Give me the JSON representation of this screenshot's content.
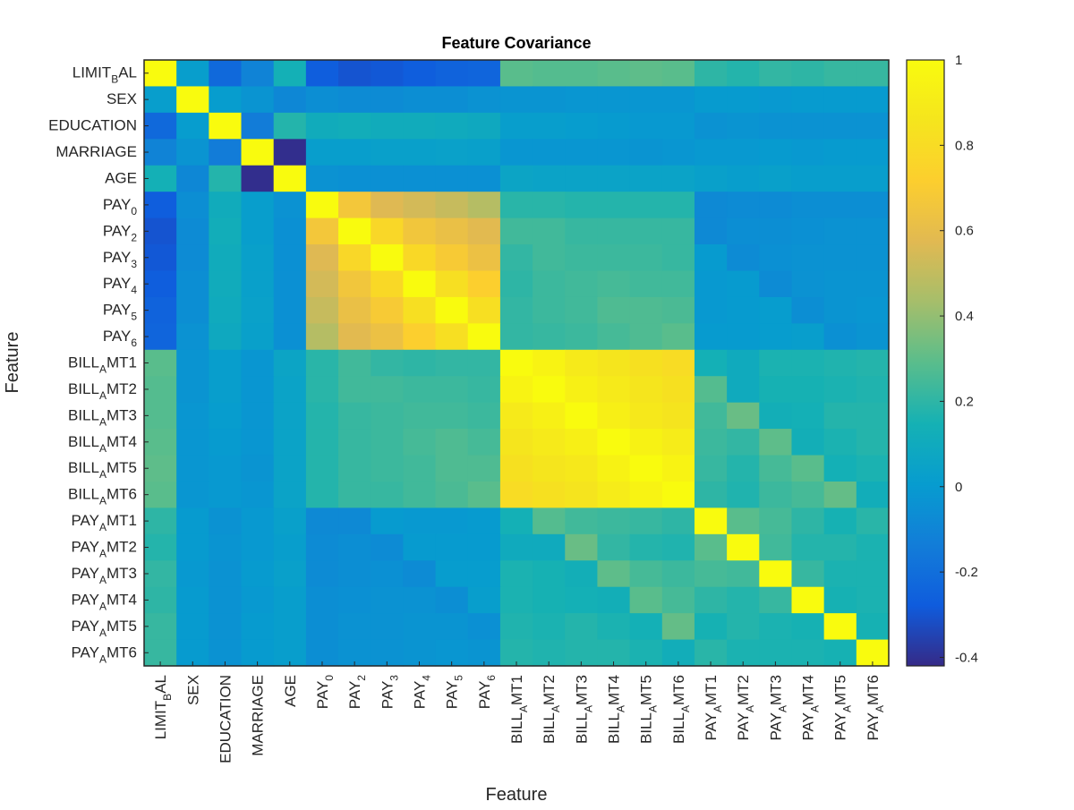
{
  "chart_data": {
    "type": "heatmap",
    "title": "Feature Covariance",
    "xlabel": "Feature",
    "ylabel": "Feature",
    "labels": [
      {
        "base": "LIMIT",
        "sub": "B",
        "tail": "AL"
      },
      {
        "base": "SEX",
        "sub": "",
        "tail": ""
      },
      {
        "base": "EDUCATION",
        "sub": "",
        "tail": ""
      },
      {
        "base": "MARRIAGE",
        "sub": "",
        "tail": ""
      },
      {
        "base": "AGE",
        "sub": "",
        "tail": ""
      },
      {
        "base": "PAY",
        "sub": "0",
        "tail": ""
      },
      {
        "base": "PAY",
        "sub": "2",
        "tail": ""
      },
      {
        "base": "PAY",
        "sub": "3",
        "tail": ""
      },
      {
        "base": "PAY",
        "sub": "4",
        "tail": ""
      },
      {
        "base": "PAY",
        "sub": "5",
        "tail": ""
      },
      {
        "base": "PAY",
        "sub": "6",
        "tail": ""
      },
      {
        "base": "BILL",
        "sub": "A",
        "tail": "MT1"
      },
      {
        "base": "BILL",
        "sub": "A",
        "tail": "MT2"
      },
      {
        "base": "BILL",
        "sub": "A",
        "tail": "MT3"
      },
      {
        "base": "BILL",
        "sub": "A",
        "tail": "MT4"
      },
      {
        "base": "BILL",
        "sub": "A",
        "tail": "MT5"
      },
      {
        "base": "BILL",
        "sub": "A",
        "tail": "MT6"
      },
      {
        "base": "PAY",
        "sub": "A",
        "tail": "MT1"
      },
      {
        "base": "PAY",
        "sub": "A",
        "tail": "MT2"
      },
      {
        "base": "PAY",
        "sub": "A",
        "tail": "MT3"
      },
      {
        "base": "PAY",
        "sub": "A",
        "tail": "MT4"
      },
      {
        "base": "PAY",
        "sub": "A",
        "tail": "MT5"
      },
      {
        "base": "PAY",
        "sub": "A",
        "tail": "MT6"
      }
    ],
    "values": [
      [
        1.0,
        0.02,
        -0.22,
        -0.11,
        0.14,
        -0.27,
        -0.3,
        -0.29,
        -0.27,
        -0.25,
        -0.24,
        0.29,
        0.28,
        0.28,
        0.29,
        0.3,
        0.29,
        0.2,
        0.18,
        0.21,
        0.2,
        0.22,
        0.22
      ],
      [
        0.02,
        1.0,
        0.01,
        -0.03,
        -0.09,
        -0.06,
        -0.07,
        -0.07,
        -0.06,
        -0.06,
        -0.04,
        -0.03,
        -0.03,
        -0.02,
        -0.02,
        -0.02,
        -0.02,
        0.0,
        0.0,
        -0.01,
        0.0,
        0.0,
        0.0
      ],
      [
        -0.22,
        0.01,
        1.0,
        -0.14,
        0.18,
        0.11,
        0.12,
        0.11,
        0.11,
        0.1,
        0.09,
        0.02,
        0.02,
        0.01,
        0.0,
        -0.01,
        -0.01,
        -0.04,
        -0.03,
        -0.04,
        -0.04,
        -0.04,
        -0.04
      ],
      [
        -0.11,
        -0.03,
        -0.14,
        1.0,
        -0.41,
        0.02,
        0.02,
        0.03,
        0.03,
        0.04,
        0.03,
        -0.02,
        -0.02,
        -0.02,
        -0.02,
        -0.03,
        -0.02,
        -0.01,
        -0.01,
        0.0,
        -0.01,
        0.0,
        0.0
      ],
      [
        0.14,
        -0.09,
        0.18,
        -0.41,
        1.0,
        -0.04,
        -0.05,
        -0.05,
        -0.05,
        -0.05,
        -0.05,
        0.06,
        0.05,
        0.05,
        0.05,
        0.05,
        0.05,
        0.03,
        0.02,
        0.03,
        0.02,
        0.02,
        0.02
      ],
      [
        -0.27,
        -0.06,
        0.11,
        0.02,
        -0.04,
        1.0,
        0.67,
        0.57,
        0.54,
        0.51,
        0.47,
        0.19,
        0.19,
        0.18,
        0.18,
        0.18,
        0.18,
        -0.08,
        -0.07,
        -0.07,
        -0.06,
        -0.06,
        -0.06
      ],
      [
        -0.3,
        -0.07,
        0.12,
        0.02,
        -0.05,
        0.67,
        1.0,
        0.77,
        0.66,
        0.62,
        0.58,
        0.24,
        0.24,
        0.22,
        0.22,
        0.22,
        0.22,
        -0.08,
        -0.06,
        -0.06,
        -0.05,
        -0.04,
        -0.04
      ],
      [
        -0.29,
        -0.07,
        0.11,
        0.03,
        -0.05,
        0.57,
        0.77,
        1.0,
        0.78,
        0.69,
        0.63,
        0.21,
        0.24,
        0.23,
        0.23,
        0.23,
        0.22,
        0.0,
        -0.07,
        -0.05,
        -0.04,
        -0.04,
        -0.04
      ],
      [
        -0.27,
        -0.06,
        0.11,
        0.03,
        -0.05,
        0.54,
        0.66,
        0.78,
        1.0,
        0.82,
        0.72,
        0.2,
        0.23,
        0.24,
        0.25,
        0.24,
        0.24,
        -0.01,
        -0.0,
        -0.07,
        -0.04,
        -0.03,
        -0.03
      ],
      [
        -0.25,
        -0.06,
        0.1,
        0.04,
        -0.05,
        0.51,
        0.62,
        0.69,
        0.82,
        1.0,
        0.82,
        0.21,
        0.23,
        0.24,
        0.27,
        0.27,
        0.26,
        -0.01,
        -0.0,
        0.01,
        -0.06,
        -0.03,
        -0.02
      ],
      [
        -0.24,
        -0.04,
        0.09,
        0.03,
        -0.05,
        0.47,
        0.58,
        0.63,
        0.72,
        0.82,
        1.0,
        0.21,
        0.22,
        0.23,
        0.25,
        0.27,
        0.29,
        -0.0,
        -0.0,
        0.01,
        0.02,
        -0.05,
        -0.03
      ],
      [
        0.29,
        -0.03,
        0.02,
        -0.02,
        0.06,
        0.19,
        0.24,
        0.21,
        0.2,
        0.21,
        0.21,
        1.0,
        0.95,
        0.89,
        0.86,
        0.83,
        0.8,
        0.14,
        0.1,
        0.16,
        0.16,
        0.17,
        0.18
      ],
      [
        0.28,
        -0.03,
        0.02,
        -0.02,
        0.05,
        0.19,
        0.24,
        0.24,
        0.23,
        0.23,
        0.22,
        0.95,
        1.0,
        0.93,
        0.89,
        0.86,
        0.83,
        0.28,
        0.1,
        0.15,
        0.15,
        0.16,
        0.17
      ],
      [
        0.28,
        -0.02,
        0.01,
        -0.02,
        0.05,
        0.18,
        0.22,
        0.23,
        0.24,
        0.24,
        0.23,
        0.89,
        0.93,
        1.0,
        0.92,
        0.88,
        0.85,
        0.24,
        0.32,
        0.13,
        0.14,
        0.18,
        0.18
      ],
      [
        0.29,
        -0.02,
        0.0,
        -0.02,
        0.05,
        0.18,
        0.22,
        0.23,
        0.25,
        0.27,
        0.25,
        0.86,
        0.89,
        0.92,
        1.0,
        0.94,
        0.9,
        0.23,
        0.21,
        0.3,
        0.13,
        0.16,
        0.18
      ],
      [
        0.3,
        -0.02,
        -0.01,
        -0.03,
        0.05,
        0.18,
        0.22,
        0.23,
        0.24,
        0.27,
        0.27,
        0.83,
        0.86,
        0.88,
        0.94,
        1.0,
        0.95,
        0.22,
        0.18,
        0.25,
        0.29,
        0.14,
        0.16
      ],
      [
        0.29,
        -0.02,
        -0.01,
        -0.02,
        0.05,
        0.18,
        0.22,
        0.22,
        0.24,
        0.26,
        0.29,
        0.8,
        0.83,
        0.85,
        0.9,
        0.95,
        1.0,
        0.2,
        0.17,
        0.23,
        0.25,
        0.31,
        0.12
      ],
      [
        0.2,
        0.0,
        -0.04,
        -0.01,
        0.03,
        -0.08,
        -0.08,
        0.0,
        -0.01,
        -0.01,
        -0.0,
        0.14,
        0.28,
        0.24,
        0.23,
        0.22,
        0.2,
        1.0,
        0.29,
        0.25,
        0.2,
        0.15,
        0.19
      ],
      [
        0.18,
        0.0,
        -0.03,
        -0.01,
        0.02,
        -0.07,
        -0.06,
        -0.07,
        -0.0,
        -0.0,
        -0.0,
        0.1,
        0.1,
        0.32,
        0.21,
        0.18,
        0.17,
        0.29,
        1.0,
        0.24,
        0.18,
        0.18,
        0.16
      ],
      [
        0.21,
        -0.01,
        -0.04,
        0.0,
        0.03,
        -0.07,
        -0.06,
        -0.05,
        -0.07,
        0.01,
        0.01,
        0.16,
        0.15,
        0.13,
        0.3,
        0.25,
        0.23,
        0.25,
        0.24,
        1.0,
        0.22,
        0.16,
        0.16
      ],
      [
        0.2,
        0.0,
        -0.04,
        -0.01,
        0.02,
        -0.06,
        -0.05,
        -0.04,
        -0.04,
        -0.06,
        0.02,
        0.16,
        0.15,
        0.14,
        0.13,
        0.29,
        0.25,
        0.2,
        0.18,
        0.22,
        1.0,
        0.15,
        0.16
      ],
      [
        0.22,
        0.0,
        -0.04,
        0.0,
        0.02,
        -0.06,
        -0.04,
        -0.04,
        -0.03,
        -0.03,
        -0.05,
        0.17,
        0.16,
        0.18,
        0.16,
        0.14,
        0.31,
        0.15,
        0.18,
        0.16,
        0.15,
        1.0,
        0.15
      ],
      [
        0.22,
        0.0,
        -0.04,
        0.0,
        0.02,
        -0.06,
        -0.04,
        -0.04,
        -0.03,
        -0.02,
        -0.03,
        0.18,
        0.17,
        0.18,
        0.18,
        0.16,
        0.12,
        0.19,
        0.16,
        0.16,
        0.16,
        0.15,
        1.0
      ]
    ],
    "colorbar": {
      "range": [
        -0.42,
        1.0
      ],
      "ticks": [
        "1",
        "0.8",
        "0.6",
        "0.4",
        "0.2",
        "0",
        "-0.2",
        "-0.4"
      ],
      "tick_values": [
        1,
        0.8,
        0.6,
        0.4,
        0.2,
        0,
        -0.2,
        -0.4
      ]
    },
    "colormap": "parula",
    "grid": false
  }
}
